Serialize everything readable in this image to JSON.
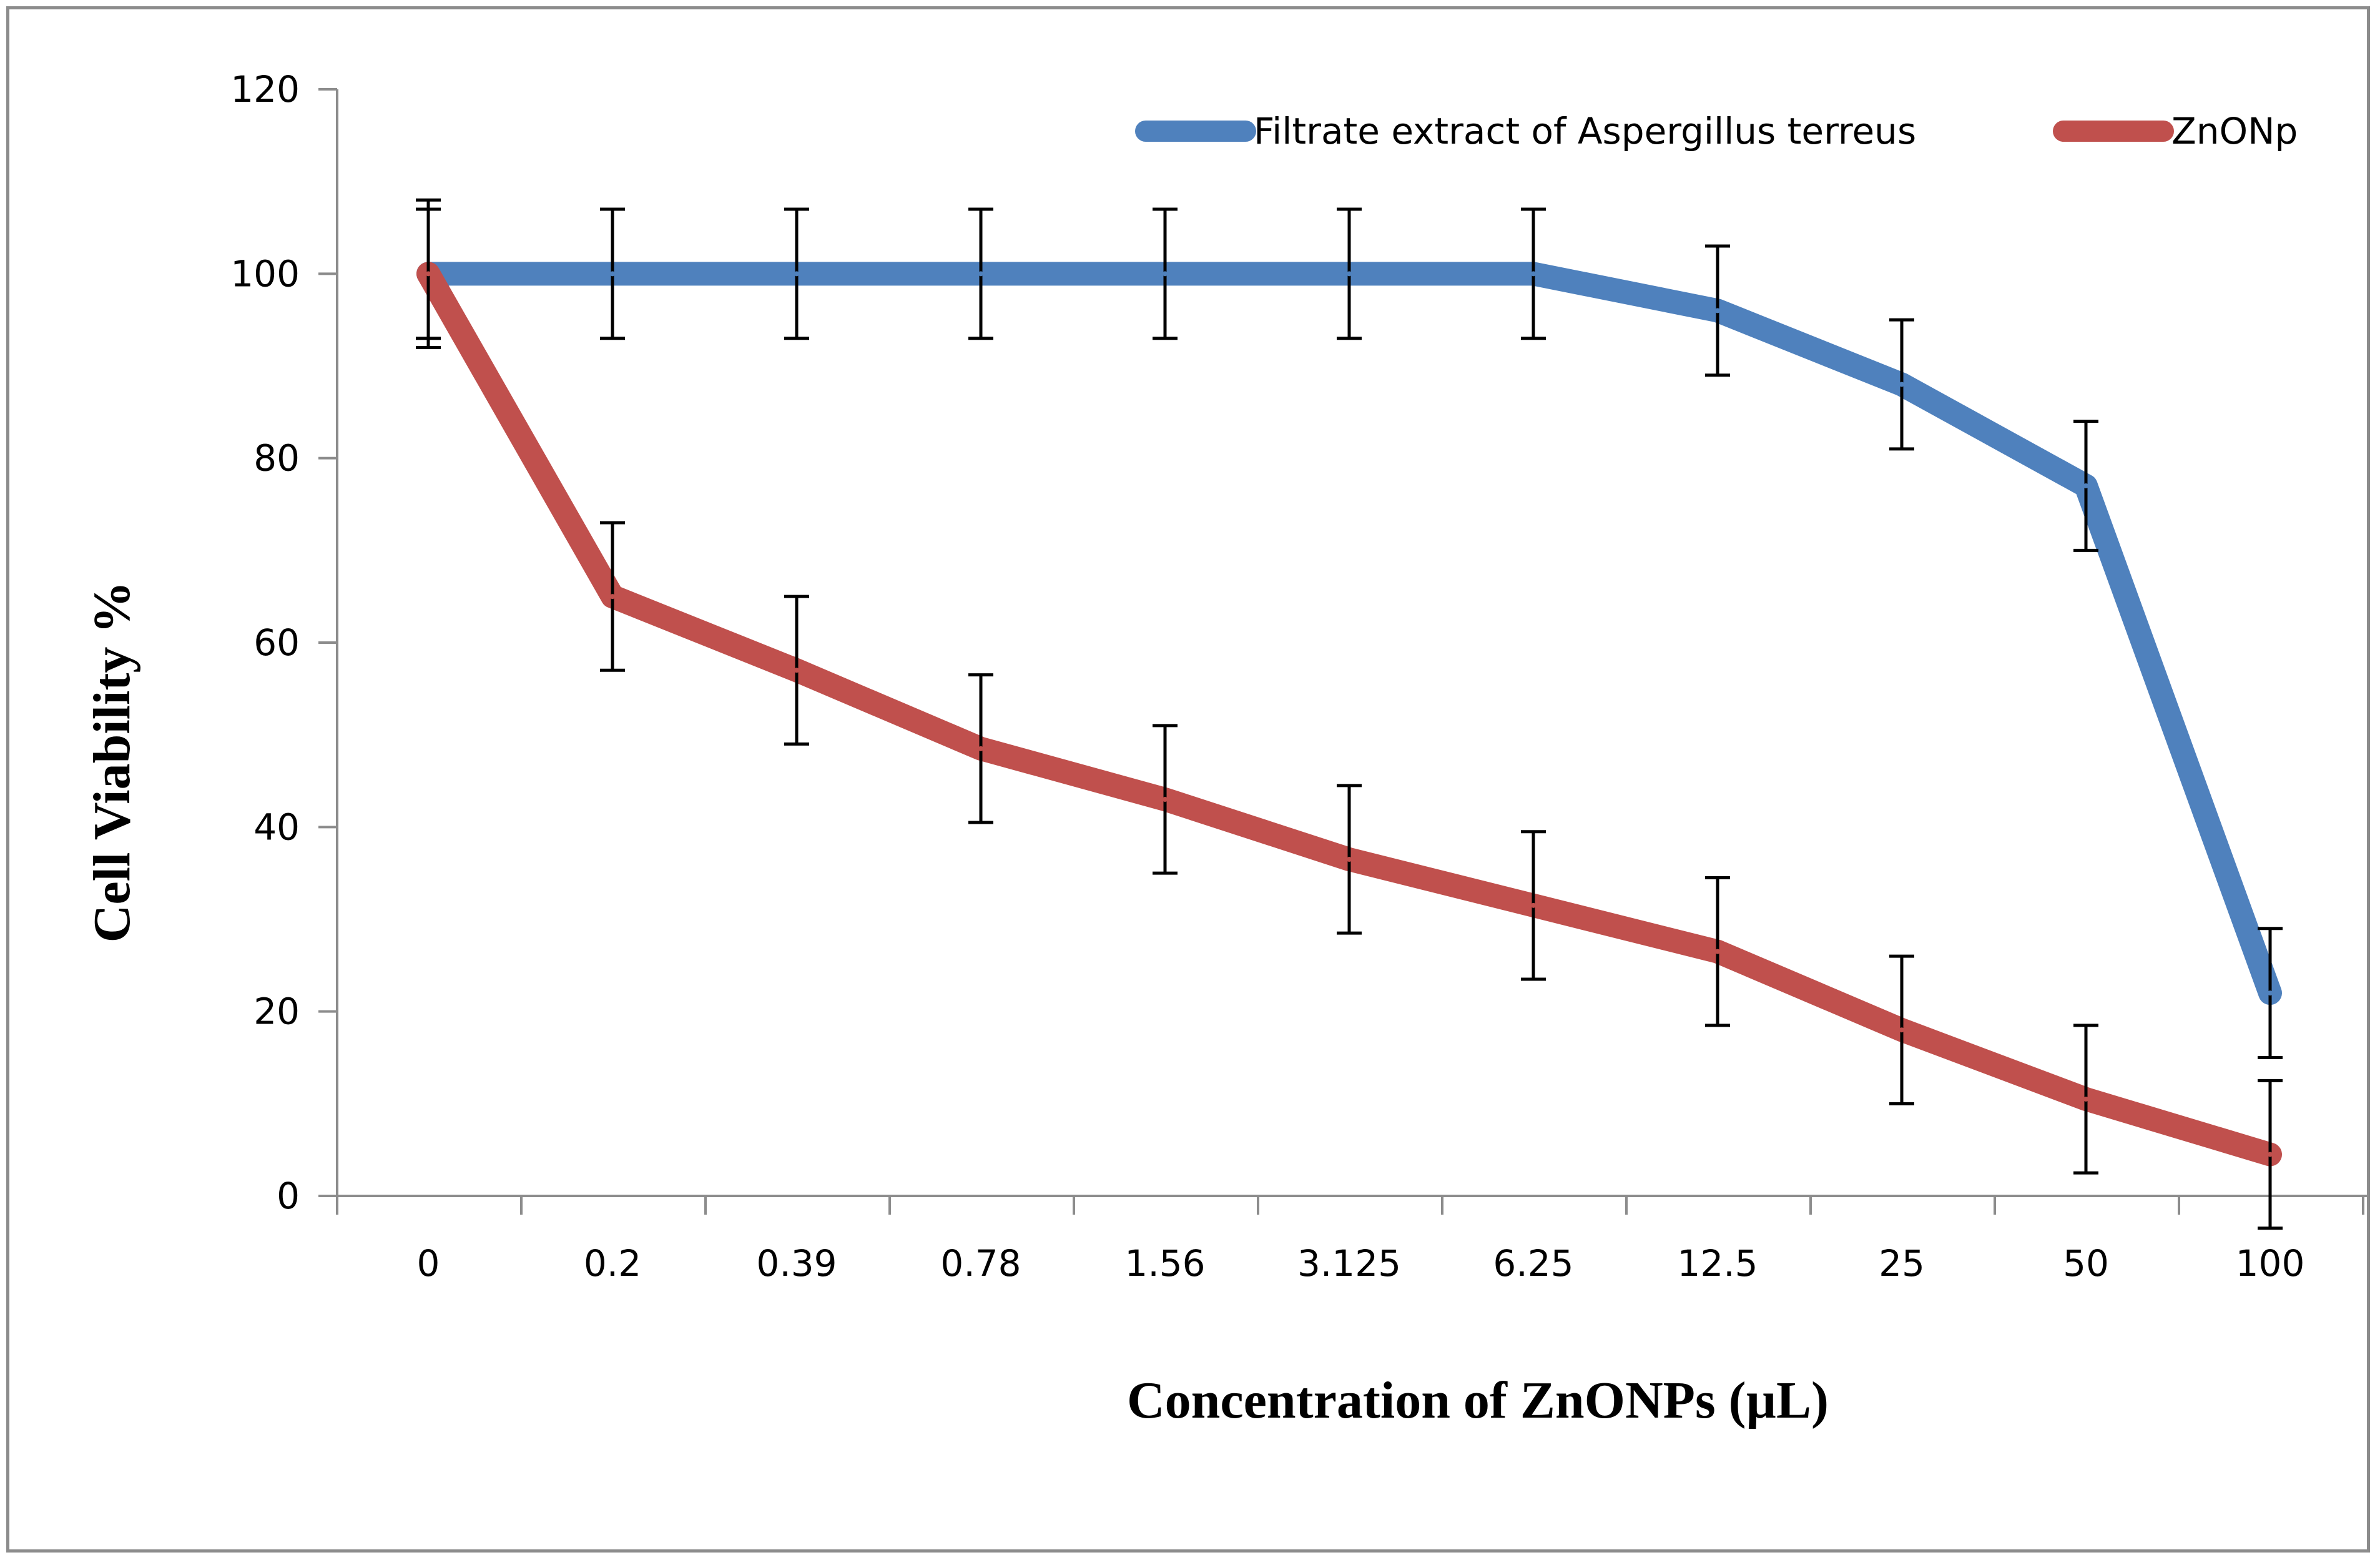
{
  "chart_data": {
    "type": "line",
    "title": "",
    "xlabel": "Concentration  of ZnONPs  (µL)",
    "ylabel": "Cell Viability  %",
    "categories": [
      "0",
      "0.2",
      "0.39",
      "0.78",
      "1.56",
      "3.125",
      "6.25",
      "12.5",
      "25",
      "50",
      "100"
    ],
    "ylim": [
      0,
      120
    ],
    "yticks": [
      0,
      20,
      40,
      60,
      80,
      100,
      120
    ],
    "legend_position": "top-right",
    "series": [
      {
        "name": "Filtrate extract of Aspergillus terreus",
        "color": "#4f81bd",
        "values": [
          100,
          100,
          100,
          100,
          100,
          100,
          100,
          96,
          88,
          77,
          22
        ],
        "errors": [
          7,
          7,
          7,
          7,
          7,
          7,
          7,
          7,
          7,
          7,
          7
        ]
      },
      {
        "name": "ZnONp",
        "color": "#c0504d",
        "values": [
          100,
          65,
          57,
          48.5,
          43,
          36.5,
          31.5,
          26.5,
          18,
          10.5,
          4.5
        ],
        "errors": [
          8,
          8,
          8,
          8,
          8,
          8,
          8,
          8,
          8,
          8,
          8
        ]
      }
    ],
    "legend": [
      {
        "label": "Filtrate extract of Aspergillus terreus"
      },
      {
        "label": "ZnONp"
      }
    ]
  }
}
